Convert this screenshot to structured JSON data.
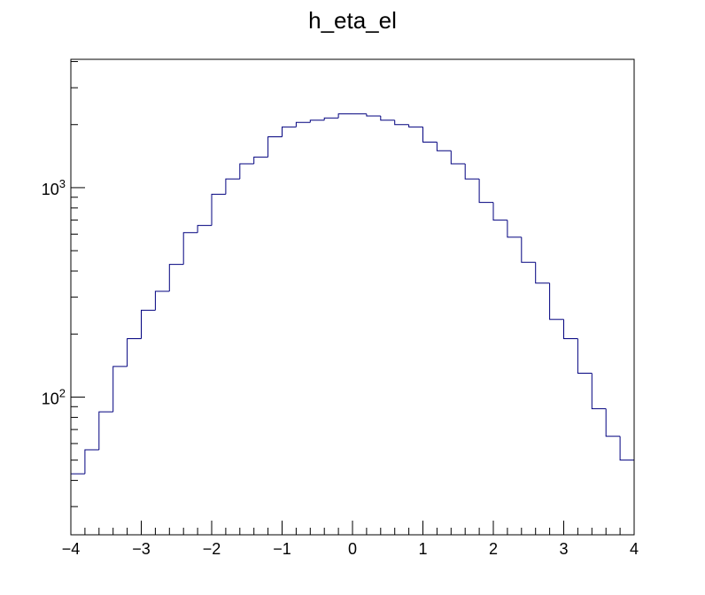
{
  "chart_data": {
    "type": "histogram",
    "title": "h_eta_el",
    "xlabel": "",
    "ylabel": "",
    "xlim": [
      -4,
      4
    ],
    "ylim": [
      22,
      4100
    ],
    "yscale": "log",
    "grid": false,
    "legend": "none",
    "line_color": "#00007f",
    "bin_edges": [
      -4,
      -3.8,
      -3.6,
      -3.4,
      -3.2,
      -3,
      -2.8,
      -2.6,
      -2.4,
      -2.2,
      -2,
      -1.8,
      -1.6,
      -1.4,
      -1.2,
      -1,
      -0.8,
      -0.6,
      -0.4,
      -0.2,
      0,
      0.2,
      0.4,
      0.6,
      0.8,
      1,
      1.2,
      1.4,
      1.6,
      1.8,
      2,
      2.2,
      2.4,
      2.6,
      2.8,
      3,
      3.2,
      3.4,
      3.6,
      3.8,
      4
    ],
    "values": [
      43,
      56,
      85,
      140,
      190,
      260,
      320,
      430,
      610,
      660,
      930,
      1100,
      1300,
      1400,
      1750,
      1950,
      2050,
      2100,
      2150,
      2250,
      2250,
      2200,
      2100,
      2000,
      1950,
      1650,
      1500,
      1300,
      1100,
      850,
      700,
      580,
      440,
      350,
      235,
      190,
      130,
      88,
      65,
      50
    ],
    "x_ticks": [
      {
        "value": -4,
        "label": "−4"
      },
      {
        "value": -3,
        "label": "−3"
      },
      {
        "value": -2,
        "label": "−2"
      },
      {
        "value": -1,
        "label": "−1"
      },
      {
        "value": 0,
        "label": "0"
      },
      {
        "value": 1,
        "label": "1"
      },
      {
        "value": 2,
        "label": "2"
      },
      {
        "value": 3,
        "label": "3"
      },
      {
        "value": 4,
        "label": "4"
      }
    ],
    "y_ticks": [
      {
        "value": 100,
        "base": "10",
        "exp": "2"
      },
      {
        "value": 1000,
        "base": "10",
        "exp": "3"
      }
    ]
  }
}
